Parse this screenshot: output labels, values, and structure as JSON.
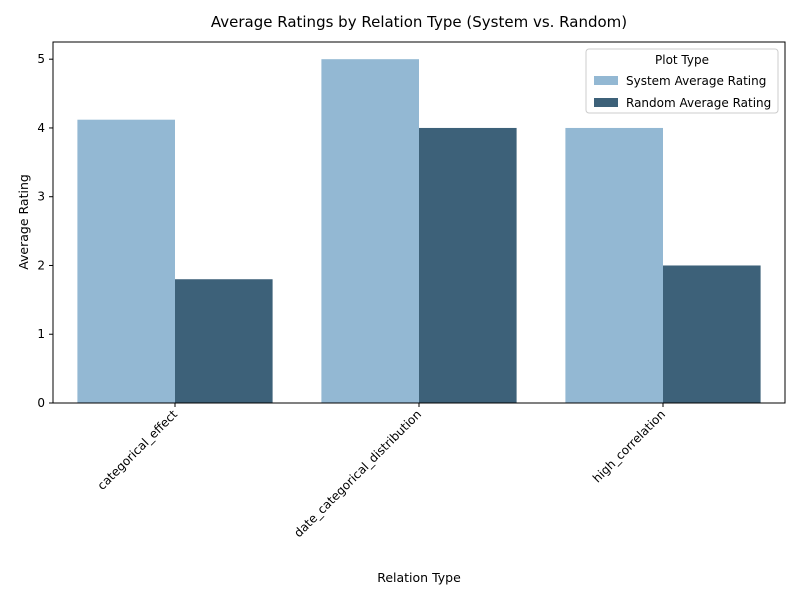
{
  "chart_data": {
    "type": "bar",
    "title": "Average Ratings by Relation Type (System vs. Random)",
    "xlabel": "Relation Type",
    "ylabel": "Average Rating",
    "categories": [
      "categorical_effect",
      "date_categorical_distribution",
      "high_correlation"
    ],
    "series": [
      {
        "name": "System Average Rating",
        "color": "#93b8d3",
        "values": [
          4.12,
          5.0,
          4.0
        ]
      },
      {
        "name": "Random Average Rating",
        "color": "#3d6179",
        "values": [
          1.8,
          4.0,
          2.0
        ]
      }
    ],
    "ylim": [
      0,
      5.25
    ],
    "yticks": [
      "0",
      "1",
      "2",
      "3",
      "4",
      "5"
    ],
    "grid": false,
    "legend": {
      "title": "Plot Type",
      "placement": "top-right"
    }
  }
}
